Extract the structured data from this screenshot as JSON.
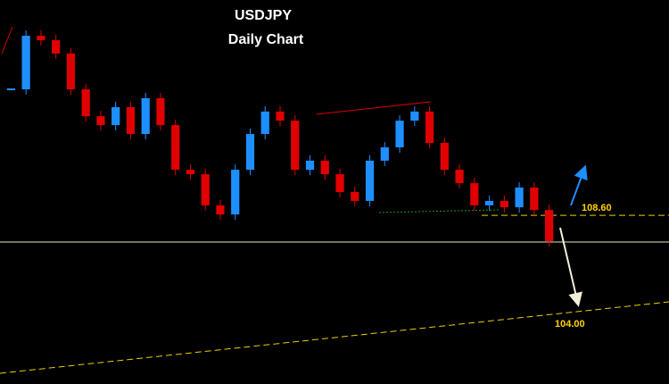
{
  "chart_data": {
    "type": "candlestick",
    "title": "USDJPY",
    "subtitle": "Daily Chart",
    "values": [
      114.55,
      117.08,
      116.87,
      116.24,
      114.55,
      113.28,
      112.86,
      113.71,
      112.44,
      114.13,
      112.86,
      110.75,
      110.54,
      109.07,
      108.64,
      110.75,
      112.44,
      113.5,
      113.07,
      110.75,
      111.18,
      110.54,
      109.7,
      109.28,
      111.18,
      111.81,
      113.07,
      113.5,
      112.02,
      110.75,
      110.12,
      109.07,
      109.28,
      108.98,
      109.91,
      108.85,
      107.38
    ],
    "up_color": "#1e8fff",
    "down_color": "#e00000",
    "ylim": [
      100.63,
      118.77
    ],
    "levels": [
      {
        "value": 108.6,
        "label": "108.60"
      },
      {
        "value": 104,
        "label": "104.00"
      }
    ]
  }
}
